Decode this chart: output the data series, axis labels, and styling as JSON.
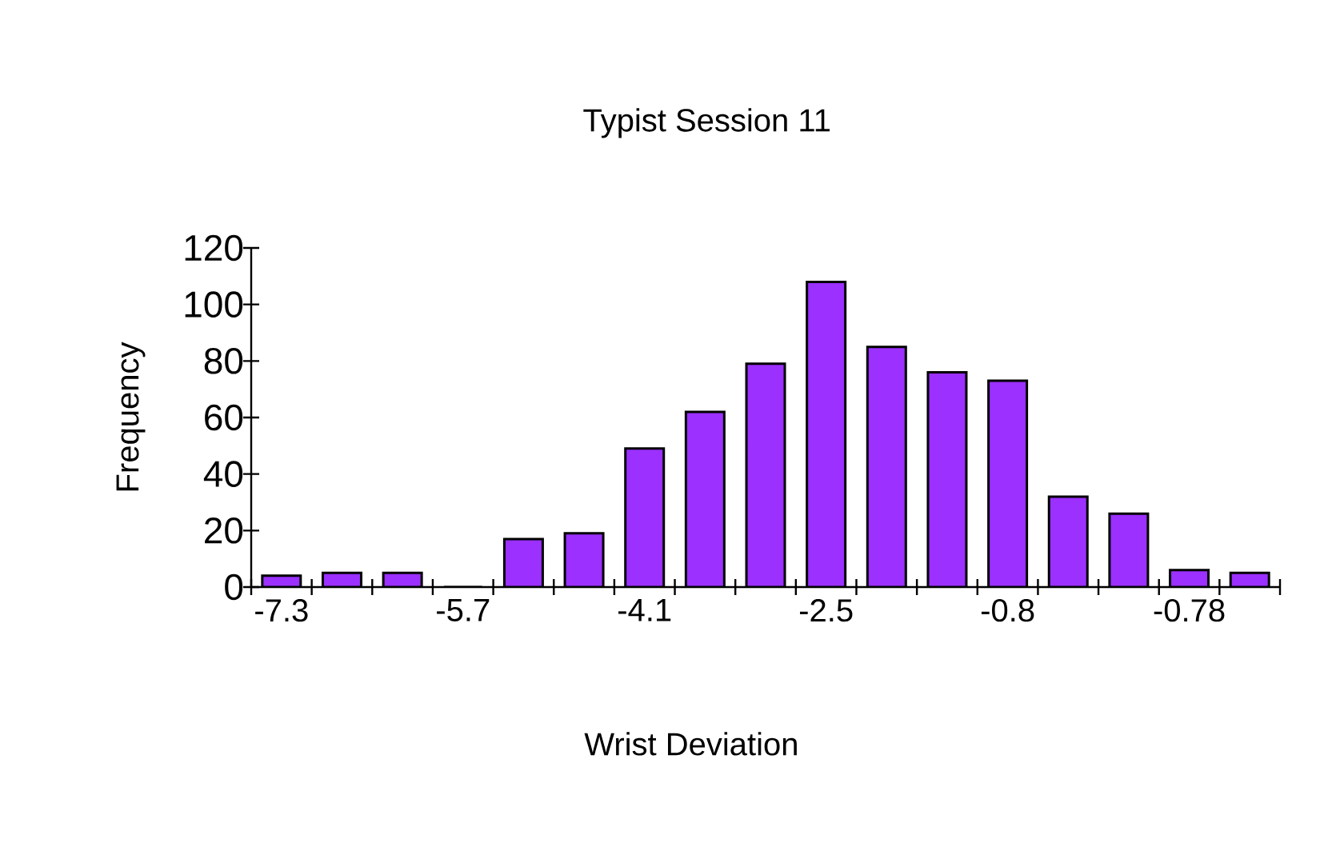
{
  "chart_data": {
    "type": "bar",
    "title": "Typist Session 11",
    "xlabel": "Wrist Deviation",
    "ylabel": "Frequency",
    "categories": [
      "-7.3",
      null,
      null,
      "-5.7",
      null,
      null,
      "-4.1",
      null,
      null,
      "-2.5",
      null,
      null,
      "-0.8",
      null,
      null,
      "-0.78",
      null
    ],
    "values": [
      4,
      5,
      5,
      0,
      17,
      19,
      49,
      62,
      79,
      108,
      85,
      76,
      73,
      32,
      26,
      6,
      5
    ],
    "color": "#9b30ff",
    "ylim": [
      0,
      120
    ],
    "yticks": [
      0,
      20,
      40,
      60,
      80,
      100,
      120
    ],
    "grid": false
  }
}
